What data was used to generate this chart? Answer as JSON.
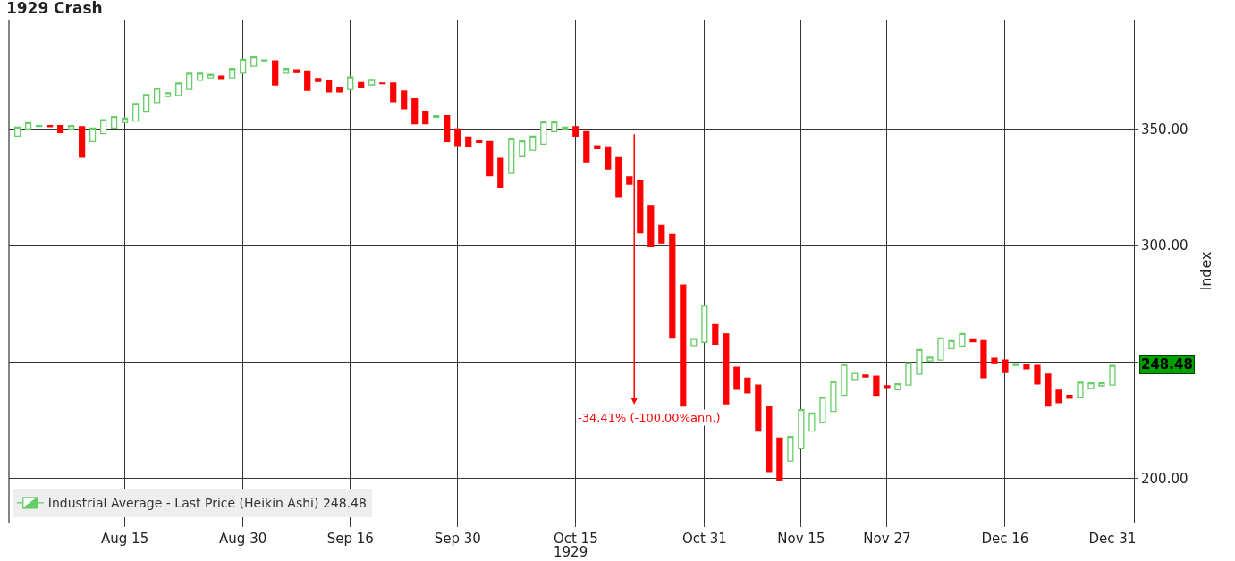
{
  "chart_data": {
    "type": "candlestick",
    "title": "1929 Crash",
    "ylabel": "Index",
    "categories": [
      null,
      null,
      null,
      null,
      null,
      null,
      null,
      null,
      null,
      null,
      "Aug 15",
      null,
      null,
      null,
      null,
      null,
      null,
      null,
      null,
      null,
      null,
      "Aug 30",
      null,
      null,
      null,
      null,
      null,
      null,
      null,
      null,
      null,
      "Sep 16",
      null,
      null,
      null,
      null,
      null,
      null,
      null,
      null,
      null,
      "Sep 30",
      null,
      null,
      null,
      null,
      null,
      null,
      null,
      null,
      null,
      null,
      "Oct 15",
      null,
      null,
      null,
      null,
      null,
      null,
      null,
      null,
      null,
      null,
      null,
      "Oct 31",
      null,
      null,
      null,
      null,
      null,
      null,
      null,
      null,
      "Nov 15",
      null,
      null,
      null,
      null,
      null,
      null,
      null,
      "Nov 27",
      null,
      null,
      null,
      null,
      null,
      null,
      null,
      null,
      null,
      null,
      "Dec 16",
      null,
      null,
      null,
      null,
      null,
      null,
      null,
      null,
      null,
      "Dec 31"
    ],
    "series": [
      {
        "name": "Industrial Average - Last Price (Heikin Ashi) 248.48",
        "colors": [
          "#66cc66",
          "#66cc66",
          "#66cc66",
          "#ff0000",
          "#ff0000",
          "#66cc66",
          "#ff0000",
          "#66cc66",
          "#66cc66",
          "#66cc66",
          "#66cc66",
          "#66cc66",
          "#66cc66",
          "#66cc66",
          "#66cc66",
          "#66cc66",
          "#66cc66",
          "#66cc66",
          "#66cc66",
          "#ff0000",
          "#66cc66",
          "#66cc66",
          "#66cc66",
          "#66cc66",
          "#ff0000",
          "#66cc66",
          "#ff0000",
          "#ff0000",
          "#ff0000",
          "#ff0000",
          "#ff0000",
          "#66cc66",
          "#ff0000",
          "#66cc66",
          "#ff0000",
          "#ff0000",
          "#ff0000",
          "#ff0000",
          "#ff0000",
          "#66cc66",
          "#ff0000",
          "#ff0000",
          "#ff0000",
          "#ff0000",
          "#ff0000",
          "#ff0000",
          "#66cc66",
          "#66cc66",
          "#66cc66",
          "#66cc66",
          "#66cc66",
          "#66cc66",
          "#ff0000",
          "#ff0000",
          "#ff0000",
          "#ff0000",
          "#ff0000",
          "#ff0000",
          "#ff0000",
          "#ff0000",
          "#ff0000",
          "#ff0000",
          "#ff0000",
          "#66cc66",
          "#66cc66",
          "#ff0000",
          "#ff0000",
          "#ff0000",
          "#ff0000",
          "#ff0000",
          "#ff0000",
          "#ff0000",
          "#66cc66",
          "#66cc66",
          "#66cc66",
          "#66cc66",
          "#66cc66",
          "#66cc66",
          "#66cc66",
          "#ff0000",
          "#ff0000",
          "#ff0000",
          "#66cc66",
          "#66cc66",
          "#66cc66",
          "#66cc66",
          "#66cc66",
          "#66cc66",
          "#66cc66",
          "#ff0000",
          "#ff0000",
          "#ff0000",
          "#ff0000",
          "#66cc66",
          "#ff0000",
          "#ff0000",
          "#ff0000",
          "#ff0000",
          "#ff0000",
          "#66cc66",
          "#66cc66",
          "#66cc66",
          "#66cc66"
        ],
        "ohlc": [
          [
            347,
            350.8,
            347,
            350.8
          ],
          [
            350,
            352.7,
            350,
            352.7
          ],
          [
            351.1,
            351.5,
            351.1,
            351.5
          ],
          [
            351.5,
            351.5,
            351,
            351
          ],
          [
            351.5,
            351.5,
            348.5,
            348.5
          ],
          [
            350,
            351.5,
            350,
            351.5
          ],
          [
            351,
            351,
            338,
            338
          ],
          [
            344.7,
            350.4,
            344.7,
            350.4
          ],
          [
            348,
            354,
            348,
            354
          ],
          [
            350.4,
            355.3,
            350.4,
            355.3
          ],
          [
            352.7,
            354.6,
            352.7,
            354.6
          ],
          [
            353.4,
            361,
            353.4,
            361
          ],
          [
            357.6,
            364.8,
            357.6,
            364.8
          ],
          [
            361.4,
            367.5,
            361.4,
            367.5
          ],
          [
            364,
            365.6,
            364,
            365.6
          ],
          [
            364.4,
            369.8,
            364.4,
            369.8
          ],
          [
            367,
            374,
            367,
            374
          ],
          [
            371,
            374,
            371,
            374
          ],
          [
            372,
            373.5,
            372,
            373.5
          ],
          [
            372.8,
            372.8,
            371.7,
            371.7
          ],
          [
            372,
            376,
            372,
            376
          ],
          [
            374,
            380,
            374,
            380
          ],
          [
            377,
            381,
            377,
            381
          ],
          [
            379.3,
            379.7,
            379.3,
            379.7
          ],
          [
            379.3,
            379.3,
            369,
            369
          ],
          [
            374,
            376,
            374,
            376
          ],
          [
            375.5,
            375.5,
            374.3,
            374.3
          ],
          [
            375,
            375,
            366.7,
            366.7
          ],
          [
            371.7,
            371.7,
            370.5,
            370.5
          ],
          [
            371,
            371,
            366,
            366
          ],
          [
            368,
            368,
            366,
            366
          ],
          [
            367,
            372.4,
            367,
            372.4
          ],
          [
            370,
            370,
            368,
            368
          ],
          [
            369,
            371.3,
            369,
            371.3
          ],
          [
            369.8,
            369.8,
            369.5,
            369.5
          ],
          [
            369.8,
            369.8,
            361.8,
            361.8
          ],
          [
            366.3,
            366.3,
            358.7,
            358.7
          ],
          [
            363,
            363,
            352.3,
            352.3
          ],
          [
            357.6,
            357.6,
            352.3,
            352.3
          ],
          [
            355,
            355.7,
            355,
            355.7
          ],
          [
            355.7,
            355.7,
            344.7,
            344.7
          ],
          [
            350,
            350,
            343,
            343
          ],
          [
            346.6,
            346.6,
            342.4,
            342.4
          ],
          [
            345,
            345,
            344.3,
            344.3
          ],
          [
            344.7,
            344.7,
            330,
            330
          ],
          [
            337.5,
            337.5,
            325,
            325
          ],
          [
            331,
            345.8,
            331,
            345.8
          ],
          [
            338.2,
            345,
            338.2,
            345
          ],
          [
            340.9,
            347,
            340.9,
            347
          ],
          [
            343.5,
            353,
            343.5,
            353
          ],
          [
            348.9,
            353,
            348.9,
            353
          ],
          [
            350,
            350.8,
            350,
            350.8
          ],
          [
            351,
            351,
            347,
            347
          ],
          [
            348.9,
            348.9,
            336,
            336
          ],
          [
            342.8,
            342.8,
            341.6,
            341.6
          ],
          [
            342.4,
            342.4,
            332.9,
            332.9
          ],
          [
            337.8,
            337.8,
            320.7,
            320.7
          ],
          [
            329.5,
            329.5,
            326.4,
            326.4
          ],
          [
            328,
            328,
            305.5,
            305.5
          ],
          [
            316.9,
            316.9,
            299.4,
            299.4
          ],
          [
            308.6,
            308.6,
            301,
            301
          ],
          [
            304.8,
            304.8,
            260.6,
            260.6
          ],
          [
            283,
            283,
            231,
            231
          ],
          [
            257,
            260,
            257,
            260
          ],
          [
            258.4,
            274.3,
            258.4,
            274.3
          ],
          [
            266,
            266,
            257.6,
            257.6
          ],
          [
            262,
            262,
            232,
            232
          ],
          [
            247.7,
            247.7,
            238.2,
            238.2
          ],
          [
            243,
            243,
            236.7,
            236.7
          ],
          [
            240,
            240,
            220.3,
            220.3
          ],
          [
            230.6,
            230.6,
            202.9,
            202.9
          ],
          [
            217.3,
            217.3,
            199,
            199
          ],
          [
            207.4,
            218,
            207.4,
            218
          ],
          [
            212.7,
            229.5,
            212.7,
            229.5
          ],
          [
            220.3,
            228,
            220.3,
            228
          ],
          [
            224.1,
            234.8,
            224.1,
            234.8
          ],
          [
            228.7,
            241.6,
            228.7,
            241.6
          ],
          [
            235.6,
            248.9,
            235.6,
            248.9
          ],
          [
            242.4,
            245.4,
            242.4,
            245.4
          ],
          [
            244.3,
            244.3,
            243.5,
            243.5
          ],
          [
            243.9,
            243.9,
            235.6,
            235.6
          ],
          [
            239.7,
            239.7,
            239,
            239
          ],
          [
            238,
            240.6,
            238,
            240.6
          ],
          [
            240,
            249.6,
            240,
            249.6
          ],
          [
            244.7,
            255.3,
            244.7,
            255.3
          ],
          [
            250.4,
            252,
            250.4,
            252
          ],
          [
            250.8,
            260.3,
            250.8,
            260.3
          ],
          [
            255.7,
            259.1,
            255.7,
            259.1
          ],
          [
            256.8,
            262.2,
            256.8,
            262.2
          ],
          [
            259.9,
            259.9,
            258.7,
            258.7
          ],
          [
            259.1,
            259.1,
            243.2,
            243.2
          ],
          [
            251.5,
            251.5,
            249.6,
            249.6
          ],
          [
            250.8,
            250.8,
            245.8,
            245.8
          ],
          [
            248.5,
            249.2,
            248.5,
            249.2
          ],
          [
            248.9,
            248.9,
            247,
            247
          ],
          [
            248.5,
            248.5,
            240.5,
            240.5
          ],
          [
            244.7,
            244.7,
            231,
            231
          ],
          [
            237.8,
            237.8,
            232.5,
            232.5
          ],
          [
            235.6,
            235.6,
            234.4,
            234.4
          ],
          [
            234.8,
            241.3,
            234.8,
            241.3
          ],
          [
            238.6,
            241,
            238.6,
            241
          ],
          [
            239.7,
            241,
            239.7,
            241
          ],
          [
            240,
            248.48,
            240,
            248.48
          ]
        ]
      }
    ],
    "ylim": [
      181,
      397
    ],
    "yticks": [
      {
        "value": 200,
        "label": "200.00"
      },
      {
        "value": 250,
        "label": null
      },
      {
        "value": 300,
        "label": "300.00"
      },
      {
        "value": 350,
        "label": "350.00"
      }
    ],
    "annotations": [
      "-34.41% (-100.00%ann.)",
      "248.48",
      "1929"
    ],
    "grid": true,
    "legend": "bottom left"
  }
}
